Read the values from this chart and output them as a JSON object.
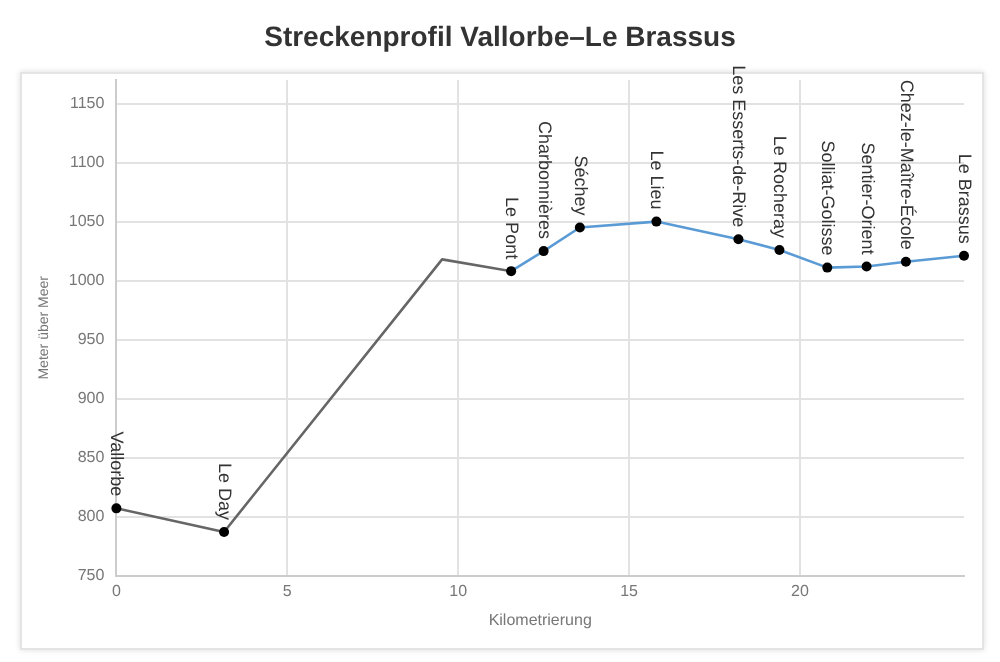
{
  "chart_data": {
    "type": "line",
    "title": "Streckenprofil Vallorbe–Le Brassus",
    "xlabel": "Kilometrierung",
    "ylabel": "Meter über Meer",
    "series": [
      {
        "type": "line",
        "color": "#666666",
        "x": [
          0,
          3.15,
          9.53,
          11.55
        ],
        "values": [
          807,
          787,
          1018,
          1008
        ],
        "marker": "none"
      },
      {
        "type": "line",
        "color": "#5b9bd5",
        "x": [
          11.55,
          12.5,
          13.56,
          15.8,
          18.2,
          19.4,
          20.8,
          21.95,
          23.1,
          24.8
        ],
        "values": [
          1008,
          1025,
          1045,
          1050,
          1035,
          1026,
          1011,
          1012,
          1016,
          1021
        ],
        "marker": "none"
      },
      {
        "type": "scatter",
        "color": "#000000",
        "x": [
          0,
          3.15,
          11.55,
          12.5,
          13.56,
          15.8,
          18.2,
          19.4,
          20.8,
          21.95,
          23.1,
          24.8
        ],
        "values": [
          807,
          787,
          1008,
          1025,
          1045,
          1050,
          1035,
          1026,
          1011,
          1012,
          1016,
          1021
        ],
        "marker": "circle"
      }
    ],
    "annotations": [
      {
        "text": "Vallorbe",
        "x": 0,
        "y": 807
      },
      {
        "text": "Le Day",
        "x": 3.15,
        "y": 787
      },
      {
        "text": "Le Pont",
        "x": 11.55,
        "y": 1008
      },
      {
        "text": "Charbonnières",
        "x": 12.5,
        "y": 1025
      },
      {
        "text": "Séchey",
        "x": 13.56,
        "y": 1045
      },
      {
        "text": "Le Lieu",
        "x": 15.8,
        "y": 1050
      },
      {
        "text": "Les Esserts-de-Rive",
        "x": 18.2,
        "y": 1035
      },
      {
        "text": "Le Rocheray",
        "x": 19.4,
        "y": 1026
      },
      {
        "text": "Solliat-Golisse",
        "x": 20.8,
        "y": 1011
      },
      {
        "text": "Sentier-Orient",
        "x": 21.95,
        "y": 1012
      },
      {
        "text": "Chez-le-Maître-École",
        "x": 23.1,
        "y": 1016
      },
      {
        "text": "Le Brassus",
        "x": 24.8,
        "y": 1021
      }
    ],
    "xlim": [
      0,
      24.8
    ],
    "xticks": [
      0,
      5,
      10,
      15,
      20
    ],
    "ylim": [
      750,
      1170
    ],
    "yticks": [
      750,
      800,
      850,
      900,
      950,
      1000,
      1050,
      1100,
      1150
    ],
    "grid": true,
    "legend": false
  }
}
